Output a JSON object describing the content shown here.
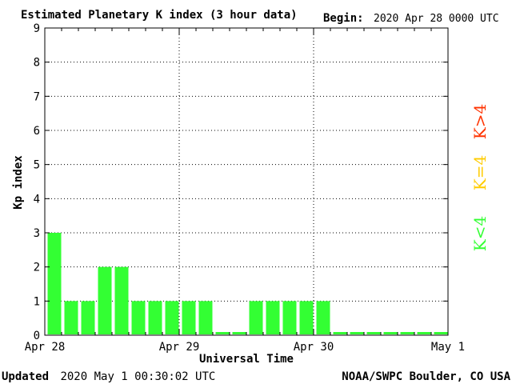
{
  "header": {
    "title": "Estimated Planetary K index (3 hour data)",
    "begin_label": "Begin:",
    "begin_value": "2020 Apr 28 0000 UTC"
  },
  "footer": {
    "updated_label": "Updated",
    "updated_value": "2020 May  1 00:30:02 UTC",
    "source": "NOAA/SWPC Boulder, CO USA"
  },
  "legend": {
    "high": "K>4",
    "mid": "K=4",
    "low": "K<4"
  },
  "colors": {
    "bar_low": "#33ff33",
    "bar_mid": "#ffcc00",
    "bar_high": "#ff3300",
    "legend_high": "#ff3300",
    "legend_mid": "#ffcc00",
    "legend_low": "#33ff33",
    "axis": "#000000",
    "grid": "#000000"
  },
  "chart_data": {
    "type": "bar",
    "title": "Estimated Planetary K index (3 hour data)",
    "xlabel": "Universal Time",
    "ylabel": "Kp index",
    "ylim": [
      0,
      9
    ],
    "yticks": [
      "0",
      "1",
      "2",
      "3",
      "4",
      "5",
      "6",
      "7",
      "8",
      "9"
    ],
    "xticks": [
      "Apr 28",
      "Apr 29",
      "Apr 30",
      "May 1"
    ],
    "grid": true,
    "interval_hours": 3,
    "values": [
      3,
      1,
      1,
      2,
      2,
      1,
      1,
      1,
      1,
      1,
      0,
      0,
      1,
      1,
      1,
      1,
      1,
      0,
      0,
      0,
      0,
      0,
      0,
      0
    ]
  }
}
